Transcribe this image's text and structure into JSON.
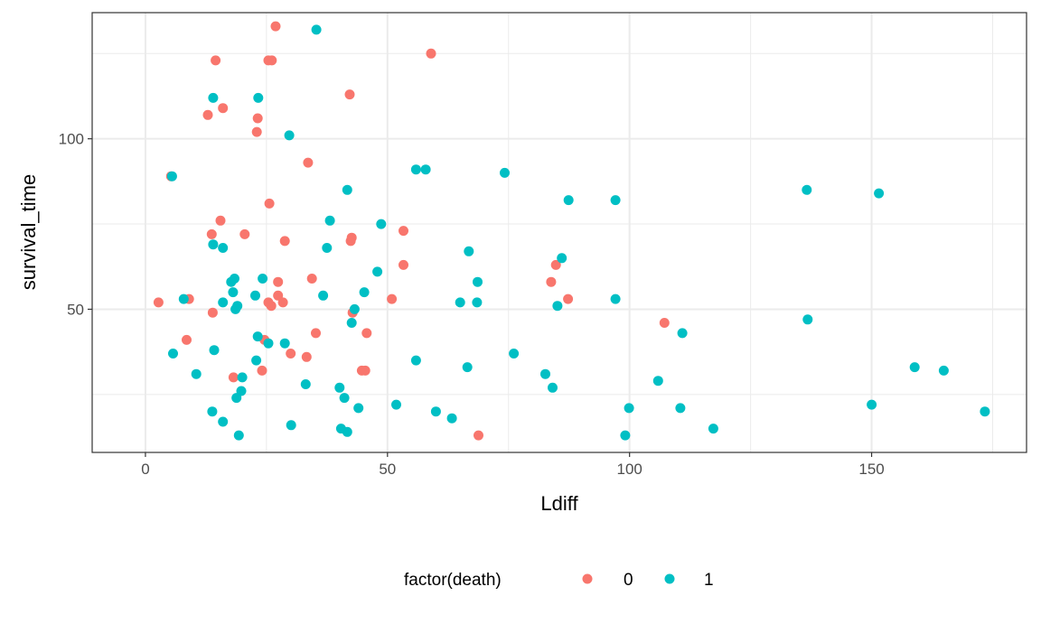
{
  "chart_data": {
    "type": "scatter",
    "title": "",
    "xlabel": "Ldiff",
    "ylabel": "survival_time",
    "xlim": [
      -11,
      182
    ],
    "ylim": [
      8,
      137
    ],
    "x_ticks": [
      0,
      50,
      100,
      150
    ],
    "x_tick_labels": [
      "0",
      "50",
      "100",
      "150"
    ],
    "y_ticks": [
      50,
      100
    ],
    "y_tick_labels": [
      "50",
      "100"
    ],
    "x_minor_ticks": [
      25,
      75,
      125,
      175
    ],
    "y_minor_ticks": [
      25,
      75,
      125
    ],
    "grid": true,
    "legend": {
      "title": "factor(death)",
      "position": "bottom"
    },
    "series": [
      {
        "name": "0",
        "color": "#F8766D",
        "points": [
          [
            26.9,
            133
          ],
          [
            59,
            125
          ],
          [
            14.5,
            123
          ],
          [
            25.4,
            123
          ],
          [
            26.1,
            123
          ],
          [
            42.2,
            113
          ],
          [
            16,
            109
          ],
          [
            12.9,
            107
          ],
          [
            23.2,
            106
          ],
          [
            23,
            102
          ],
          [
            33.6,
            93
          ],
          [
            5.3,
            89
          ],
          [
            15.5,
            76
          ],
          [
            25.6,
            81
          ],
          [
            20.5,
            72
          ],
          [
            13.7,
            72
          ],
          [
            28.8,
            70
          ],
          [
            42.4,
            70
          ],
          [
            42.6,
            71
          ],
          [
            53.3,
            73
          ],
          [
            53.3,
            63
          ],
          [
            84.8,
            63
          ],
          [
            83.8,
            58
          ],
          [
            27.4,
            58
          ],
          [
            34.4,
            59
          ],
          [
            27.4,
            54
          ],
          [
            28.4,
            52
          ],
          [
            25.4,
            52
          ],
          [
            26,
            51
          ],
          [
            50.9,
            53
          ],
          [
            87.3,
            53
          ],
          [
            2.7,
            52
          ],
          [
            9,
            53
          ],
          [
            13.9,
            49
          ],
          [
            42.8,
            49
          ],
          [
            107.2,
            46
          ],
          [
            35.2,
            43
          ],
          [
            45.7,
            43
          ],
          [
            8.5,
            41
          ],
          [
            24.6,
            41
          ],
          [
            30,
            37
          ],
          [
            33.3,
            36
          ],
          [
            24.1,
            32
          ],
          [
            44.7,
            32
          ],
          [
            45.4,
            32
          ],
          [
            18.2,
            30
          ],
          [
            68.8,
            13
          ]
        ]
      },
      {
        "name": "1",
        "color": "#00BFC4",
        "points": [
          [
            35.3,
            132
          ],
          [
            14,
            112
          ],
          [
            23.3,
            112
          ],
          [
            29.7,
            101
          ],
          [
            55.9,
            91
          ],
          [
            57.9,
            91
          ],
          [
            74.2,
            90
          ],
          [
            5.5,
            89
          ],
          [
            41.7,
            85
          ],
          [
            136.6,
            85
          ],
          [
            151.5,
            84
          ],
          [
            87.4,
            82
          ],
          [
            97.1,
            82
          ],
          [
            38.1,
            76
          ],
          [
            48.7,
            75
          ],
          [
            14,
            69
          ],
          [
            16,
            68
          ],
          [
            37.5,
            68
          ],
          [
            66.8,
            67
          ],
          [
            86,
            65
          ],
          [
            47.9,
            61
          ],
          [
            17.7,
            58
          ],
          [
            18.4,
            59
          ],
          [
            24.2,
            59
          ],
          [
            68.6,
            58
          ],
          [
            18.1,
            55
          ],
          [
            22.7,
            54
          ],
          [
            36.7,
            54
          ],
          [
            45.2,
            55
          ],
          [
            7.9,
            53
          ],
          [
            16,
            52
          ],
          [
            65,
            52
          ],
          [
            68.5,
            52
          ],
          [
            97.1,
            53
          ],
          [
            18.6,
            50
          ],
          [
            19,
            51
          ],
          [
            43.2,
            50
          ],
          [
            85.1,
            51
          ],
          [
            42.6,
            46
          ],
          [
            136.8,
            47
          ],
          [
            110.9,
            43
          ],
          [
            23.2,
            42
          ],
          [
            25.4,
            40
          ],
          [
            28.8,
            40
          ],
          [
            5.7,
            37
          ],
          [
            14.2,
            38
          ],
          [
            76.1,
            37
          ],
          [
            55.9,
            35
          ],
          [
            22.9,
            35
          ],
          [
            10.5,
            31
          ],
          [
            20,
            30
          ],
          [
            66.5,
            33
          ],
          [
            82.6,
            31
          ],
          [
            158.9,
            33
          ],
          [
            164.9,
            32
          ],
          [
            33.1,
            28
          ],
          [
            40.1,
            27
          ],
          [
            84.1,
            27
          ],
          [
            105.9,
            29
          ],
          [
            19.8,
            26
          ],
          [
            18.8,
            24
          ],
          [
            41.1,
            24
          ],
          [
            51.8,
            22
          ],
          [
            44,
            21
          ],
          [
            99.9,
            21
          ],
          [
            110.5,
            21
          ],
          [
            150,
            22
          ],
          [
            13.8,
            20
          ],
          [
            60,
            20
          ],
          [
            173.4,
            20
          ],
          [
            63.3,
            18
          ],
          [
            16,
            17
          ],
          [
            30.1,
            16
          ],
          [
            40.4,
            15
          ],
          [
            41.7,
            14
          ],
          [
            117.3,
            15
          ],
          [
            19.3,
            13
          ],
          [
            99.1,
            13
          ]
        ]
      }
    ]
  }
}
